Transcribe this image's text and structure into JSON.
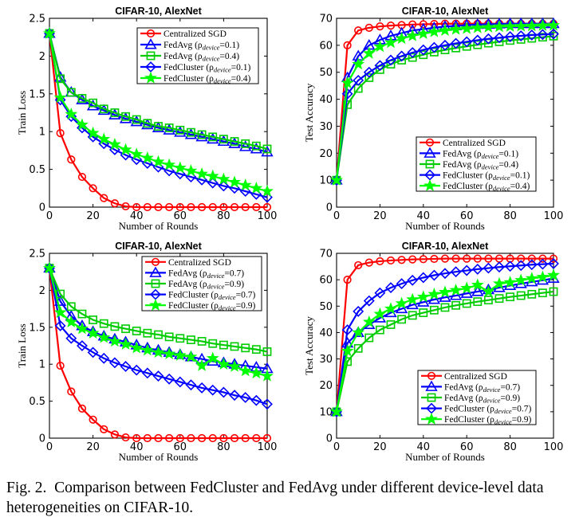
{
  "colors": {
    "centralized": "#ff0000",
    "fedavg_a": "#0000ff",
    "fedavg_b": "#00cc00",
    "fedcluster_a": "#0000ff",
    "fedcluster_b": "#00ff00"
  },
  "caption": {
    "label": "Fig. 2.",
    "text": "Comparison between FedCluster and FedAvg under different device-level data heterogeneities on CIFAR-10."
  },
  "chart_data": [
    {
      "type": "line",
      "title": "CIFAR-10, AlexNet",
      "xlabel": "Number of Rounds",
      "ylabel": "Train Loss",
      "xlim": [
        0,
        100
      ],
      "ylim": [
        0,
        2.5
      ],
      "xticks": [
        "0",
        "20",
        "40",
        "60",
        "80",
        "100"
      ],
      "yticks": [
        "0",
        "0.5",
        "1",
        "1.5",
        "2",
        "2.5"
      ],
      "legend_position": "top-right",
      "x": [
        0,
        5,
        10,
        15,
        20,
        25,
        30,
        35,
        40,
        45,
        50,
        55,
        60,
        65,
        70,
        75,
        80,
        85,
        90,
        95,
        100
      ],
      "series": [
        {
          "name": "Centralized SGD",
          "prefix": "Centralized SGD",
          "sub": "",
          "suffix": "",
          "marker": "circle",
          "color": "#ff0000",
          "values": [
            2.3,
            0.98,
            0.63,
            0.4,
            0.25,
            0.12,
            0.05,
            0.01,
            0,
            0,
            0,
            0,
            0,
            0,
            0,
            0,
            0,
            0,
            0,
            0,
            0
          ]
        },
        {
          "name": "FedAvg (ρdevice=0.1)",
          "prefix": "FedAvg (ρ",
          "sub": "device",
          "suffix": "=0.1)",
          "marker": "triangle",
          "color": "#0000ff",
          "values": [
            2.3,
            1.72,
            1.52,
            1.42,
            1.34,
            1.28,
            1.22,
            1.17,
            1.13,
            1.09,
            1.05,
            1.02,
            0.99,
            0.96,
            0.93,
            0.9,
            0.87,
            0.84,
            0.8,
            0.77,
            0.73
          ]
        },
        {
          "name": "FedAvg (ρdevice=0.4)",
          "prefix": "FedAvg (ρ",
          "sub": "device",
          "suffix": "=0.4)",
          "marker": "square",
          "color": "#00cc00",
          "values": [
            2.3,
            1.7,
            1.52,
            1.44,
            1.38,
            1.3,
            1.25,
            1.2,
            1.16,
            1.11,
            1.07,
            1.05,
            1.02,
            0.99,
            0.96,
            0.93,
            0.9,
            0.87,
            0.84,
            0.81,
            0.77
          ]
        },
        {
          "name": "FedCluster (ρdevice=0.1)",
          "prefix": "FedCluster (ρ",
          "sub": "device",
          "suffix": "=0.1)",
          "marker": "diamond",
          "color": "#0000ff",
          "values": [
            2.3,
            1.42,
            1.2,
            1.05,
            0.93,
            0.84,
            0.76,
            0.69,
            0.63,
            0.58,
            0.53,
            0.48,
            0.44,
            0.4,
            0.36,
            0.32,
            0.28,
            0.25,
            0.21,
            0.17,
            0.13
          ]
        },
        {
          "name": "FedCluster (ρdevice=0.4)",
          "prefix": "FedCluster (ρ",
          "sub": "device",
          "suffix": "=0.4)",
          "marker": "star",
          "color": "#00ff00",
          "values": [
            2.3,
            1.45,
            1.23,
            1.09,
            0.98,
            0.9,
            0.83,
            0.76,
            0.7,
            0.65,
            0.6,
            0.56,
            0.52,
            0.48,
            0.44,
            0.41,
            0.37,
            0.33,
            0.29,
            0.25,
            0.21
          ]
        }
      ]
    },
    {
      "type": "line",
      "title": "CIFAR-10, AlexNet",
      "xlabel": "Number of Rounds",
      "ylabel": "Test Accuracy",
      "xlim": [
        0,
        100
      ],
      "ylim": [
        0,
        70
      ],
      "xticks": [
        "0",
        "20",
        "40",
        "60",
        "80",
        "100"
      ],
      "yticks": [
        "0",
        "10",
        "20",
        "30",
        "40",
        "50",
        "60",
        "70"
      ],
      "legend_position": "bottom-right",
      "x": [
        0,
        5,
        10,
        15,
        20,
        25,
        30,
        35,
        40,
        45,
        50,
        55,
        60,
        65,
        70,
        75,
        80,
        85,
        90,
        95,
        100
      ],
      "series": [
        {
          "name": "Centralized SGD",
          "prefix": "Centralized SGD",
          "sub": "",
          "suffix": "",
          "marker": "circle",
          "color": "#ff0000",
          "values": [
            10,
            60,
            65.5,
            66.5,
            67,
            67.3,
            67.5,
            67.7,
            67.8,
            67.9,
            68,
            68,
            68,
            68,
            68,
            68,
            68,
            68,
            68,
            68,
            68
          ]
        },
        {
          "name": "FedAvg (ρdevice=0.1)",
          "prefix": "FedAvg (ρ",
          "sub": "device",
          "suffix": "=0.1)",
          "marker": "triangle",
          "color": "#0000ff",
          "values": [
            10,
            48,
            56,
            60,
            62,
            63.5,
            64.5,
            65.5,
            66,
            66.5,
            67,
            67.2,
            67.5,
            67.7,
            67.8,
            67.9,
            68,
            68,
            68,
            68,
            68
          ]
        },
        {
          "name": "FedAvg (ρdevice=0.4)",
          "prefix": "FedAvg (ρ",
          "sub": "device",
          "suffix": "=0.4)",
          "marker": "square",
          "color": "#00cc00",
          "values": [
            10,
            38,
            44,
            48,
            51,
            53,
            54.5,
            55.5,
            56.5,
            57.5,
            58.3,
            59,
            59.6,
            60.2,
            60.8,
            61.3,
            61.8,
            62.2,
            62.6,
            63,
            63.4
          ]
        },
        {
          "name": "FedCluster (ρdevice=0.1)",
          "prefix": "FedCluster (ρ",
          "sub": "device",
          "suffix": "=0.1)",
          "marker": "diamond",
          "color": "#0000ff",
          "values": [
            10,
            42,
            47,
            50,
            52.5,
            54.5,
            56,
            57.3,
            58.3,
            59.2,
            60,
            60.7,
            61.3,
            61.9,
            62.4,
            62.8,
            63.2,
            63.5,
            63.8,
            64,
            64.2
          ]
        },
        {
          "name": "FedCluster (ρdevice=0.4)",
          "prefix": "FedCluster (ρ",
          "sub": "device",
          "suffix": "=0.4)",
          "marker": "star",
          "color": "#00ff00",
          "values": [
            10,
            46,
            53,
            57,
            59.5,
            61,
            62.5,
            63.5,
            64.3,
            65,
            65.5,
            65.9,
            66.2,
            66.5,
            66.7,
            66.9,
            67,
            67.1,
            67.2,
            67.3,
            67.4
          ]
        }
      ]
    },
    {
      "type": "line",
      "title": "CIFAR-10, AlexNet",
      "xlabel": "Number of Rounds",
      "ylabel": "Train Loss",
      "xlim": [
        0,
        100
      ],
      "ylim": [
        0,
        2.5
      ],
      "xticks": [
        "0",
        "20",
        "40",
        "60",
        "80",
        "100"
      ],
      "yticks": [
        "0",
        "0.5",
        "1",
        "1.5",
        "2",
        "2.5"
      ],
      "legend_position": "top-right",
      "x": [
        0,
        5,
        10,
        15,
        20,
        25,
        30,
        35,
        40,
        45,
        50,
        55,
        60,
        65,
        70,
        75,
        80,
        85,
        90,
        95,
        100
      ],
      "series": [
        {
          "name": "Centralized SGD",
          "prefix": "Centralized SGD",
          "sub": "",
          "suffix": "",
          "marker": "circle",
          "color": "#ff0000",
          "values": [
            2.3,
            0.98,
            0.63,
            0.4,
            0.25,
            0.12,
            0.05,
            0.01,
            0,
            0,
            0,
            0,
            0,
            0,
            0,
            0,
            0,
            0,
            0,
            0,
            0
          ]
        },
        {
          "name": "FedAvg (ρdevice=0.7)",
          "prefix": "FedAvg (ρ",
          "sub": "device",
          "suffix": "=0.7)",
          "marker": "triangle",
          "color": "#0000ff",
          "values": [
            2.3,
            1.85,
            1.65,
            1.52,
            1.44,
            1.38,
            1.34,
            1.3,
            1.26,
            1.22,
            1.19,
            1.16,
            1.13,
            1.1,
            1.07,
            1.04,
            1.02,
            1.0,
            0.98,
            0.96,
            0.94
          ]
        },
        {
          "name": "FedAvg (ρdevice=0.9)",
          "prefix": "FedAvg (ρ",
          "sub": "device",
          "suffix": "=0.9)",
          "marker": "square",
          "color": "#00cc00",
          "values": [
            2.3,
            1.95,
            1.78,
            1.68,
            1.6,
            1.55,
            1.51,
            1.48,
            1.45,
            1.42,
            1.4,
            1.37,
            1.35,
            1.33,
            1.31,
            1.28,
            1.26,
            1.24,
            1.22,
            1.2,
            1.17
          ]
        },
        {
          "name": "FedCluster (ρdevice=0.7)",
          "prefix": "FedCluster (ρ",
          "sub": "device",
          "suffix": "=0.7)",
          "marker": "diamond",
          "color": "#0000ff",
          "values": [
            2.3,
            1.52,
            1.35,
            1.25,
            1.16,
            1.08,
            1.02,
            0.97,
            0.92,
            0.88,
            0.84,
            0.8,
            0.76,
            0.72,
            0.68,
            0.65,
            0.62,
            0.58,
            0.55,
            0.51,
            0.46
          ]
        },
        {
          "name": "FedCluster (ρdevice=0.9)",
          "prefix": "FedCluster (ρ",
          "sub": "device",
          "suffix": "=0.9)",
          "marker": "star",
          "color": "#00ff00",
          "values": [
            2.3,
            1.7,
            1.57,
            1.48,
            1.42,
            1.36,
            1.31,
            1.27,
            1.22,
            1.19,
            1.16,
            1.14,
            1.12,
            1.1,
            0.98,
            1.08,
            1.0,
            0.97,
            0.91,
            0.88,
            0.84
          ]
        }
      ]
    },
    {
      "type": "line",
      "title": "CIFAR-10, AlexNet",
      "xlabel": "Number of Rounds",
      "ylabel": "Test Accuracy",
      "xlim": [
        0,
        100
      ],
      "ylim": [
        0,
        70
      ],
      "xticks": [
        "0",
        "20",
        "40",
        "60",
        "80",
        "100"
      ],
      "yticks": [
        "0",
        "10",
        "20",
        "30",
        "40",
        "50",
        "60",
        "70"
      ],
      "legend_position": "bottom-right",
      "x": [
        0,
        5,
        10,
        15,
        20,
        25,
        30,
        35,
        40,
        45,
        50,
        55,
        60,
        65,
        70,
        75,
        80,
        85,
        90,
        95,
        100
      ],
      "series": [
        {
          "name": "Centralized SGD",
          "prefix": "Centralized SGD",
          "sub": "",
          "suffix": "",
          "marker": "circle",
          "color": "#ff0000",
          "values": [
            10,
            60,
            65.5,
            66.5,
            67,
            67.3,
            67.5,
            67.7,
            67.8,
            67.9,
            68,
            68,
            68,
            68,
            68,
            68,
            68,
            68,
            68,
            68,
            68
          ]
        },
        {
          "name": "FedAvg (ρdevice=0.7)",
          "prefix": "FedAvg (ρ",
          "sub": "device",
          "suffix": "=0.7)",
          "marker": "triangle",
          "color": "#0000ff",
          "values": [
            10,
            36,
            40,
            43,
            45.5,
            47.5,
            49,
            50.5,
            51.5,
            52.5,
            53.3,
            54,
            54.8,
            55.5,
            56.2,
            57,
            57.8,
            58.5,
            59.2,
            59.8,
            60.5
          ]
        },
        {
          "name": "FedAvg (ρdevice=0.9)",
          "prefix": "FedAvg (ρ",
          "sub": "device",
          "suffix": "=0.9)",
          "marker": "square",
          "color": "#00cc00",
          "values": [
            10,
            29,
            34,
            38,
            41,
            43,
            45,
            46.5,
            47.5,
            48.5,
            49.5,
            50.3,
            51,
            51.7,
            52.3,
            52.9,
            53.5,
            54,
            54.5,
            55,
            55.5
          ]
        },
        {
          "name": "FedCluster (ρdevice=0.7)",
          "prefix": "FedCluster (ρ",
          "sub": "device",
          "suffix": "=0.7)",
          "marker": "diamond",
          "color": "#0000ff",
          "values": [
            10,
            41,
            48,
            52,
            55,
            57,
            58.5,
            59.8,
            60.8,
            61.7,
            62.4,
            63,
            63.5,
            64,
            64.4,
            64.8,
            65.1,
            65.4,
            65.7,
            65.9,
            66.1
          ]
        },
        {
          "name": "FedCluster (ρdevice=0.9)",
          "prefix": "FedCluster (ρ",
          "sub": "device",
          "suffix": "=0.9)",
          "marker": "star",
          "color": "#00ff00",
          "values": [
            10,
            33,
            40,
            44,
            47,
            49,
            51,
            52.5,
            53.5,
            54.5,
            55.3,
            56,
            56.8,
            58,
            55.5,
            58.5,
            59,
            59.8,
            60.5,
            61,
            61.7
          ]
        }
      ]
    }
  ]
}
